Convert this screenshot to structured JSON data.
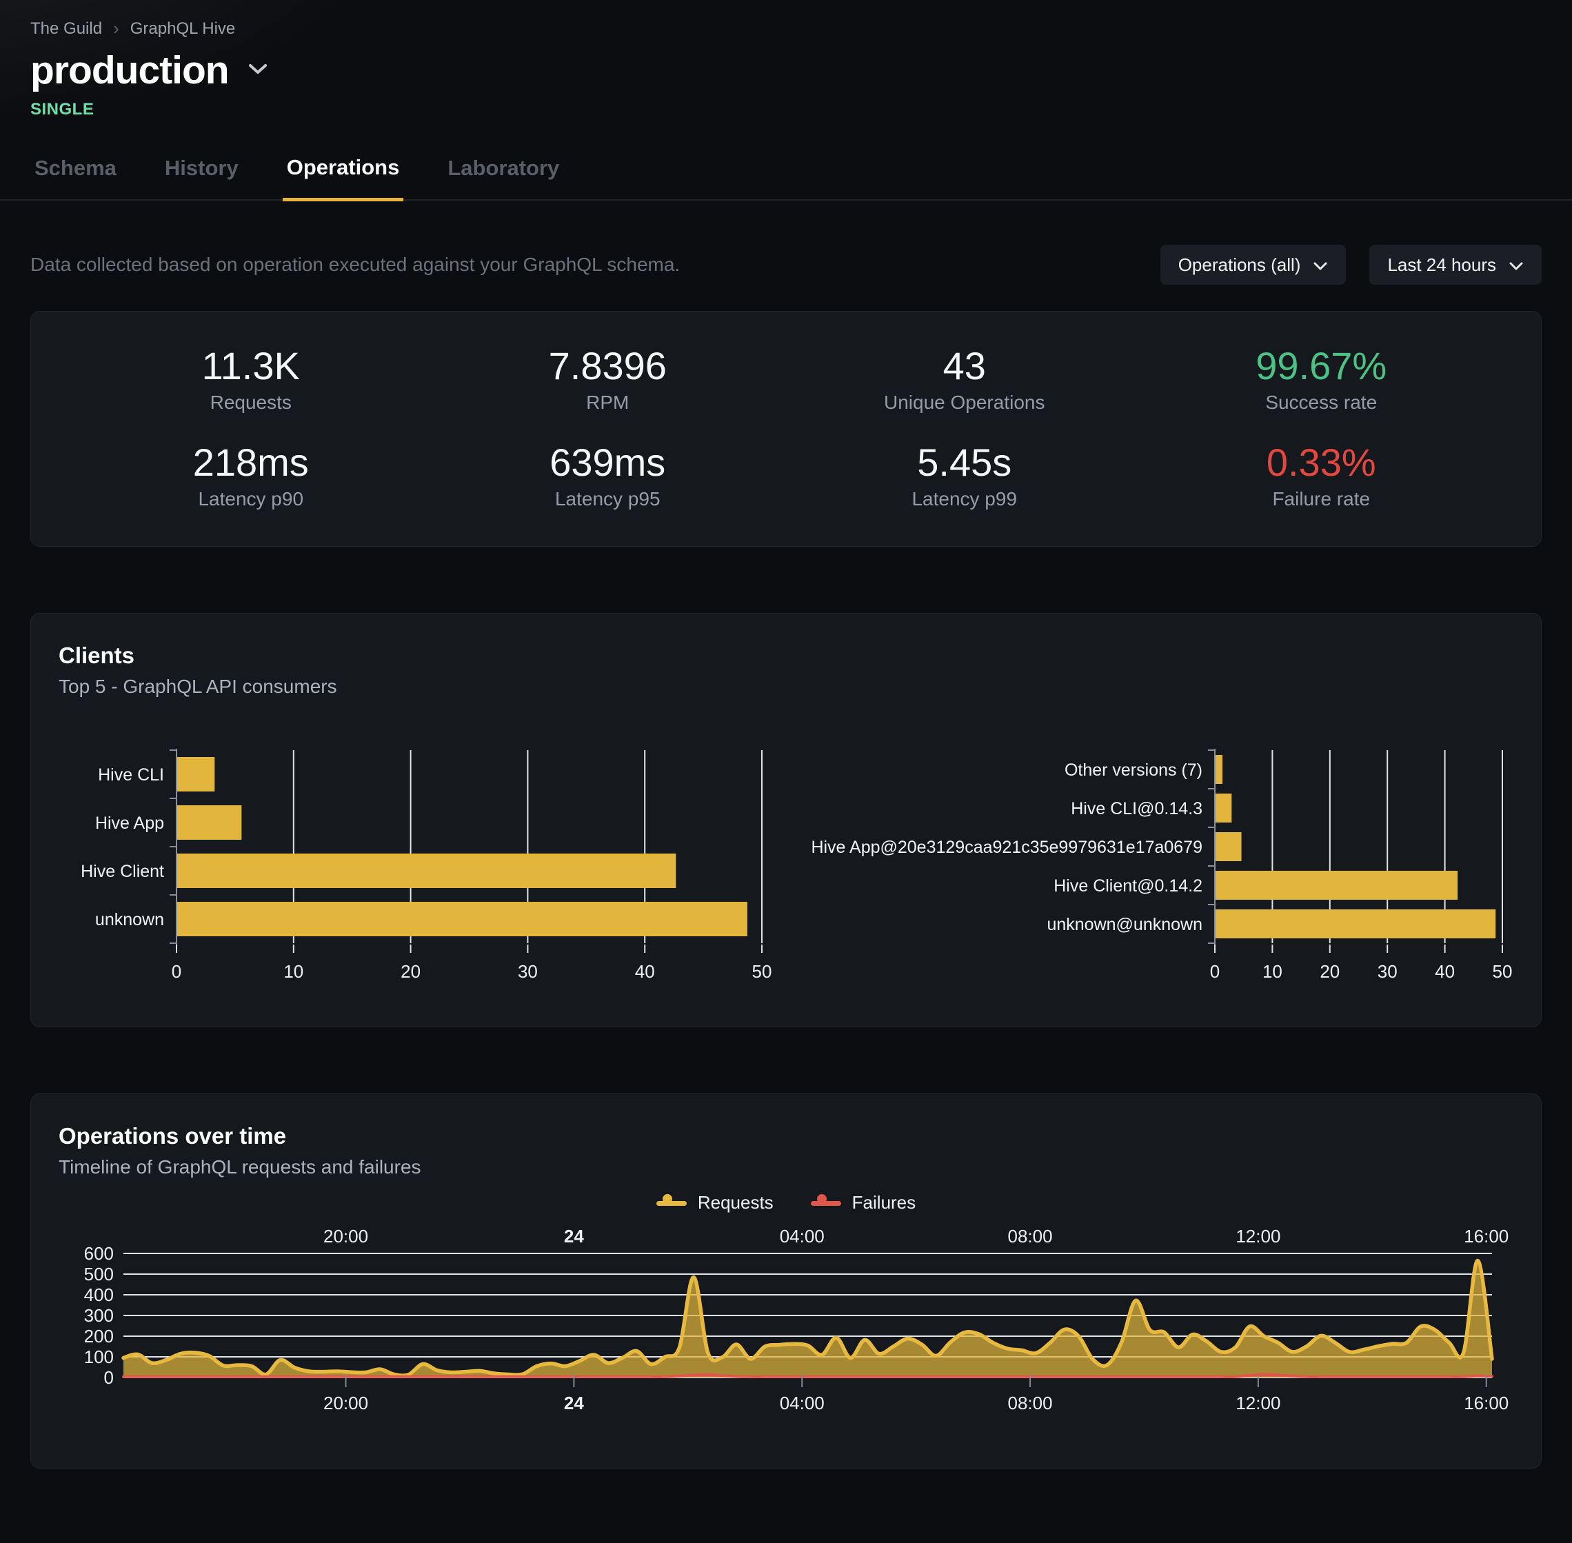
{
  "breadcrumb": {
    "items": [
      "The Guild",
      "GraphQL Hive"
    ],
    "separator": "›"
  },
  "header": {
    "title": "production",
    "badge": "SINGLE",
    "badge_color": "#6ee0ad"
  },
  "tabs": [
    {
      "label": "Schema",
      "active": false
    },
    {
      "label": "History",
      "active": false
    },
    {
      "label": "Operations",
      "active": true
    },
    {
      "label": "Laboratory",
      "active": false
    }
  ],
  "filter": {
    "description": "Data collected based on operation executed against your GraphQL schema.",
    "operations_dropdown": "Operations (all)",
    "range_dropdown": "Last 24 hours"
  },
  "stats": [
    {
      "value": "11.3K",
      "label": "Requests",
      "color": "#f7f8f9"
    },
    {
      "value": "7.8396",
      "label": "RPM",
      "color": "#f7f8f9"
    },
    {
      "value": "43",
      "label": "Unique Operations",
      "color": "#f7f8f9"
    },
    {
      "value": "99.67%",
      "label": "Success rate",
      "color": "#4cc284"
    },
    {
      "value": "218ms",
      "label": "Latency p90",
      "color": "#f7f8f9"
    },
    {
      "value": "639ms",
      "label": "Latency p95",
      "color": "#f7f8f9"
    },
    {
      "value": "5.45s",
      "label": "Latency p99",
      "color": "#f7f8f9"
    },
    {
      "value": "0.33%",
      "label": "Failure rate",
      "color": "#e2483d"
    }
  ],
  "clients": {
    "title": "Clients",
    "subtitle": "Top 5 - GraphQL API consumers"
  },
  "operations": {
    "title": "Operations over time",
    "subtitle": "Timeline of GraphQL requests and failures",
    "legend": [
      {
        "label": "Requests",
        "color": "#e7b93f"
      },
      {
        "label": "Failures",
        "color": "#e0564b"
      }
    ]
  },
  "colors": {
    "accent_yellow": "#e2b63c",
    "success_green": "#4cc284",
    "failure_red": "#e2483d",
    "grid_line": "#e2e4e8"
  },
  "chart_data": [
    {
      "id": "clients-top5",
      "type": "bar",
      "orientation": "horizontal",
      "categories": [
        "Hive CLI",
        "Hive App",
        "Hive Client",
        "unknown"
      ],
      "values": [
        3.2,
        5.5,
        42.6,
        48.7
      ],
      "xlim": [
        0,
        50
      ],
      "xticks": [
        0,
        10,
        20,
        30,
        40,
        50
      ],
      "bar_color": "#e2b63c",
      "grid": true
    },
    {
      "id": "clients-versions",
      "type": "bar",
      "orientation": "horizontal",
      "categories": [
        "Other versions (7)",
        "Hive CLI@0.14.3",
        "Hive App@20e3129caa921c35e9979631e17a0679",
        "Hive Client@0.14.2",
        "unknown@unknown"
      ],
      "values": [
        1.2,
        2.8,
        4.5,
        42.1,
        48.7
      ],
      "xlim": [
        0,
        50
      ],
      "xticks": [
        0,
        10,
        20,
        30,
        40,
        50
      ],
      "bar_color": "#e2b63c",
      "grid": true
    },
    {
      "id": "operations-timeline",
      "type": "area",
      "x_start_hours": 16.1,
      "x_step_hours": 0.25,
      "xticks": [
        {
          "t": 20,
          "label": "20:00",
          "bold": false
        },
        {
          "t": 24,
          "label": "24",
          "bold": true
        },
        {
          "t": 28,
          "label": "04:00",
          "bold": false
        },
        {
          "t": 32,
          "label": "08:00",
          "bold": false
        },
        {
          "t": 36,
          "label": "12:00",
          "bold": false
        },
        {
          "t": 40,
          "label": "16:00",
          "bold": false
        }
      ],
      "ylim": [
        0,
        600
      ],
      "yticks": [
        0,
        100,
        200,
        300,
        400,
        500,
        600
      ],
      "grid": true,
      "legend_position": "top-center",
      "series": [
        {
          "name": "Requests",
          "color": "#e7b93f",
          "fill": "rgba(226,182,60,0.72)",
          "values": [
            95,
            112,
            70,
            85,
            115,
            120,
            105,
            58,
            60,
            55,
            15,
            85,
            48,
            30,
            28,
            30,
            26,
            25,
            40,
            15,
            14,
            65,
            35,
            25,
            28,
            32,
            20,
            15,
            16,
            55,
            68,
            55,
            80,
            110,
            70,
            95,
            128,
            65,
            100,
            145,
            485,
            120,
            98,
            160,
            90,
            150,
            158,
            162,
            155,
            110,
            193,
            95,
            182,
            115,
            150,
            188,
            160,
            105,
            170,
            218,
            210,
            168,
            140,
            132,
            118,
            168,
            232,
            200,
            88,
            60,
            168,
            372,
            230,
            219,
            146,
            208,
            174,
            124,
            146,
            247,
            200,
            168,
            124,
            151,
            202,
            168,
            124,
            135,
            151,
            163,
            168,
            247,
            230,
            168,
            120,
            565,
            90
          ]
        },
        {
          "name": "Failures",
          "color": "#e0564b",
          "fill": "rgba(224,86,74,0.45)",
          "values": [
            4,
            4,
            4,
            4,
            4,
            4,
            4,
            4,
            4,
            4,
            4,
            4,
            4,
            4,
            4,
            4,
            4,
            4,
            4,
            4,
            4,
            4,
            4,
            4,
            4,
            4,
            4,
            4,
            4,
            4,
            4,
            4,
            4,
            4,
            4,
            4,
            4,
            4,
            4,
            7,
            12,
            14,
            9,
            5,
            4,
            4,
            4,
            4,
            4,
            4,
            4,
            4,
            4,
            4,
            4,
            4,
            4,
            4,
            4,
            4,
            4,
            4,
            4,
            4,
            4,
            4,
            4,
            4,
            4,
            4,
            4,
            4,
            4,
            4,
            4,
            4,
            4,
            4,
            4,
            10,
            15,
            12,
            7,
            4,
            4,
            4,
            4,
            4,
            4,
            4,
            4,
            4,
            4,
            4,
            4,
            8,
            6
          ]
        }
      ]
    }
  ]
}
